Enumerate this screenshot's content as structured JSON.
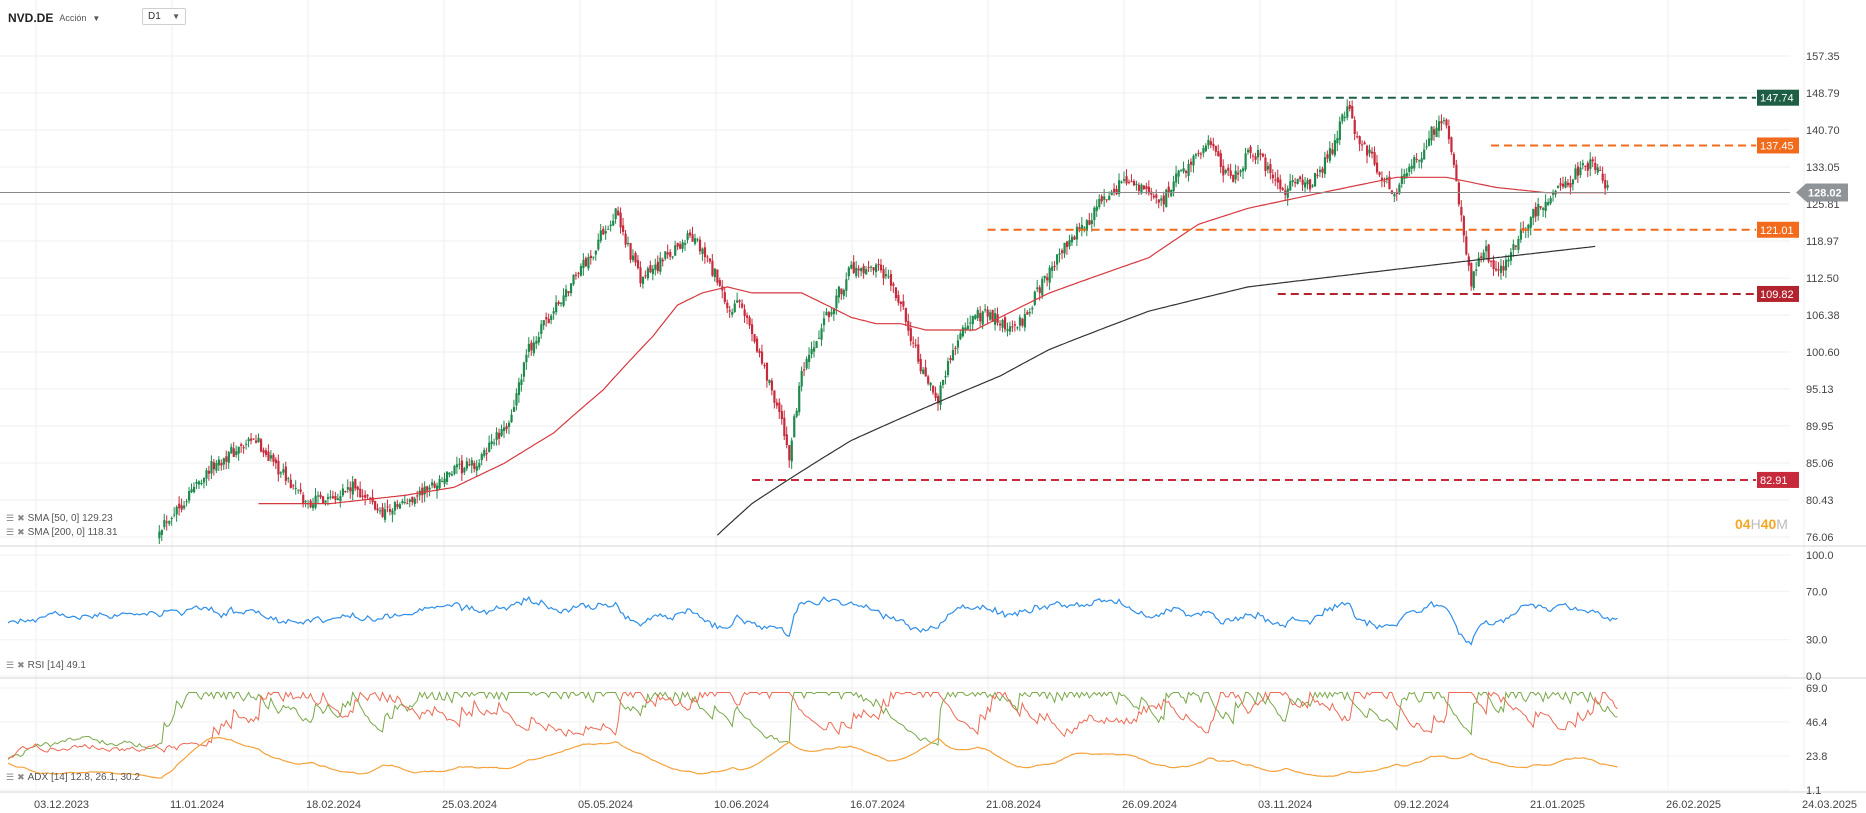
{
  "header": {
    "symbol": "NVD.DE",
    "instrument_type": "Acción",
    "timeframe": "D1"
  },
  "indicators": {
    "sma50_label": "SMA [50, 0] 129.23",
    "sma200_label": "SMA [200, 0] 118.31",
    "rsi_label": "RSI [14] 49.1",
    "adx_label": "ADX [14] 12.8, 26.1, 30.2"
  },
  "countdown": {
    "h": "04",
    "h_unit": "H",
    "m": "40",
    "m_unit": "M"
  },
  "colors": {
    "up": "#1f8a4c",
    "down": "#c62a3b",
    "sma50": "#d6393f",
    "sma200": "#333333",
    "rsi": "#2f8fe8",
    "adx": "#f5a23a",
    "di_plus": "#7aa84a",
    "di_minus": "#ec6a55"
  },
  "chart_data": [
    {
      "type": "candlestick",
      "title": "NVD.DE",
      "y_ticks": [
        157.35,
        148.79,
        140.7,
        133.05,
        125.81,
        118.97,
        112.5,
        106.38,
        100.6,
        95.13,
        89.95,
        85.06,
        80.43,
        76.06
      ],
      "x_ticks": [
        "03.12.2023",
        "11.01.2024",
        "18.02.2024",
        "25.03.2024",
        "05.05.2024",
        "10.06.2024",
        "16.07.2024",
        "21.08.2024",
        "26.09.2024",
        "03.11.2024",
        "09.12.2024",
        "21.01.2025",
        "26.02.2025",
        "24.03.2025"
      ],
      "last_price": 128.02,
      "levels": [
        {
          "value": 147.74,
          "color": "#1e5e45"
        },
        {
          "value": 137.45,
          "color": "#f26b1d"
        },
        {
          "value": 121.01,
          "color": "#f26b1d"
        },
        {
          "value": 109.82,
          "color": "#b3232e"
        },
        {
          "value": 82.91,
          "color": "#c62a3b"
        }
      ],
      "close_path": [
        [
          0,
          null
        ],
        [
          48,
          null
        ],
        [
          60,
          77
        ],
        [
          70,
          80
        ],
        [
          80,
          84
        ],
        [
          88,
          86
        ],
        [
          100,
          88
        ],
        [
          110,
          84
        ],
        [
          120,
          80
        ],
        [
          130,
          81
        ],
        [
          140,
          82
        ],
        [
          150,
          79
        ],
        [
          160,
          80
        ],
        [
          170,
          82
        ],
        [
          180,
          84
        ],
        [
          190,
          85
        ],
        [
          195,
          88
        ],
        [
          200,
          89
        ],
        [
          205,
          94
        ],
        [
          210,
          101
        ],
        [
          215,
          104
        ],
        [
          220,
          107
        ],
        [
          225,
          110
        ],
        [
          230,
          114
        ],
        [
          235,
          116
        ],
        [
          240,
          121
        ],
        [
          245,
          124
        ],
        [
          250,
          118
        ],
        [
          255,
          112
        ],
        [
          260,
          114
        ],
        [
          265,
          116
        ],
        [
          270,
          118
        ],
        [
          275,
          120
        ],
        [
          280,
          117
        ],
        [
          285,
          113
        ],
        [
          290,
          107
        ],
        [
          295,
          108
        ],
        [
          300,
          104
        ],
        [
          305,
          98
        ],
        [
          310,
          93
        ],
        [
          315,
          86
        ],
        [
          320,
          97
        ],
        [
          325,
          101
        ],
        [
          330,
          106
        ],
        [
          335,
          110
        ],
        [
          340,
          114
        ],
        [
          345,
          113
        ],
        [
          350,
          114
        ],
        [
          355,
          112
        ],
        [
          360,
          108
        ],
        [
          365,
          102
        ],
        [
          370,
          96
        ],
        [
          375,
          94
        ],
        [
          380,
          100
        ],
        [
          385,
          104
        ],
        [
          390,
          106
        ],
        [
          395,
          107
        ],
        [
          400,
          105
        ],
        [
          405,
          104
        ],
        [
          410,
          106
        ],
        [
          415,
          110
        ],
        [
          420,
          114
        ],
        [
          425,
          117
        ],
        [
          430,
          120
        ],
        [
          435,
          122
        ],
        [
          440,
          126
        ],
        [
          445,
          127
        ],
        [
          450,
          131
        ],
        [
          455,
          129
        ],
        [
          460,
          128
        ],
        [
          465,
          126
        ],
        [
          470,
          130
        ],
        [
          475,
          133
        ],
        [
          480,
          136
        ],
        [
          485,
          138
        ],
        [
          490,
          132
        ],
        [
          495,
          131
        ],
        [
          500,
          136
        ],
        [
          505,
          135
        ],
        [
          510,
          130
        ],
        [
          515,
          128
        ],
        [
          520,
          131
        ],
        [
          525,
          129
        ],
        [
          530,
          133
        ],
        [
          535,
          138
        ],
        [
          540,
          146
        ],
        [
          545,
          138
        ],
        [
          550,
          135
        ],
        [
          555,
          130
        ],
        [
          560,
          128
        ],
        [
          565,
          133
        ],
        [
          570,
          136
        ],
        [
          575,
          141
        ],
        [
          580,
          142
        ],
        [
          585,
          126
        ],
        [
          590,
          112
        ],
        [
          595,
          118
        ],
        [
          600,
          113
        ],
        [
          605,
          116
        ],
        [
          610,
          120
        ],
        [
          615,
          124
        ],
        [
          620,
          126
        ],
        [
          625,
          129
        ],
        [
          630,
          130
        ],
        [
          635,
          134
        ],
        [
          640,
          133
        ],
        [
          645,
          129
        ]
      ],
      "sma50_path": [
        [
          0,
          null
        ],
        [
          70,
          null
        ],
        [
          100,
          80
        ],
        [
          130,
          80
        ],
        [
          160,
          81
        ],
        [
          180,
          82
        ],
        [
          200,
          85
        ],
        [
          220,
          89
        ],
        [
          240,
          95
        ],
        [
          260,
          103
        ],
        [
          270,
          108
        ],
        [
          280,
          110
        ],
        [
          290,
          111
        ],
        [
          300,
          110
        ],
        [
          320,
          110
        ],
        [
          330,
          108
        ],
        [
          340,
          106
        ],
        [
          350,
          105
        ],
        [
          360,
          105
        ],
        [
          370,
          104
        ],
        [
          380,
          104
        ],
        [
          390,
          104
        ],
        [
          400,
          106
        ],
        [
          420,
          110
        ],
        [
          440,
          113
        ],
        [
          460,
          116
        ],
        [
          480,
          122
        ],
        [
          500,
          125
        ],
        [
          520,
          127
        ],
        [
          540,
          129
        ],
        [
          560,
          131
        ],
        [
          580,
          131
        ],
        [
          600,
          129
        ],
        [
          620,
          128
        ],
        [
          640,
          128
        ],
        [
          645,
          128
        ]
      ],
      "sma200_path": [
        [
          0,
          null
        ],
        [
          280,
          null
        ],
        [
          285,
          76
        ],
        [
          300,
          80
        ],
        [
          320,
          84
        ],
        [
          340,
          88
        ],
        [
          360,
          91
        ],
        [
          380,
          94
        ],
        [
          400,
          97
        ],
        [
          420,
          101
        ],
        [
          440,
          104
        ],
        [
          460,
          107
        ],
        [
          480,
          109
        ],
        [
          500,
          111
        ],
        [
          520,
          112
        ],
        [
          540,
          113
        ],
        [
          560,
          114
        ],
        [
          580,
          115
        ],
        [
          600,
          116
        ],
        [
          620,
          117
        ],
        [
          640,
          118
        ]
      ]
    },
    {
      "type": "line",
      "title": "RSI [14]",
      "y_ticks": [
        100.0,
        70.0,
        30.0,
        0.0
      ],
      "series": [
        {
          "name": "RSI [14]",
          "last": 49.1
        }
      ]
    },
    {
      "type": "line",
      "title": "ADX [14]",
      "y_ticks": [
        69.0,
        46.4,
        23.8,
        1.1
      ],
      "series": [
        {
          "name": "ADX",
          "last": 12.8
        },
        {
          "name": "+DI",
          "last": 26.1
        },
        {
          "name": "-DI",
          "last": 30.2
        }
      ]
    }
  ]
}
